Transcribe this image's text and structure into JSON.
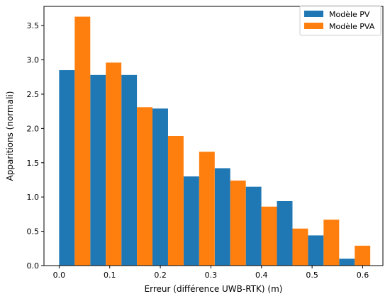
{
  "chart_data": {
    "type": "bar",
    "title": "",
    "xlabel": "Erreur (différence UWB-RTK) (m)",
    "ylabel": "Apparitions (normali)",
    "x": [
      0.0,
      0.0615,
      0.123,
      0.1845,
      0.246,
      0.3075,
      0.369,
      0.4305,
      0.492,
      0.5535
    ],
    "bin_width": 0.0615,
    "xlim": [
      -0.03,
      0.64
    ],
    "ylim": [
      0,
      3.78
    ],
    "xticks": [
      0.0,
      0.1,
      0.2,
      0.3,
      0.4,
      0.5,
      0.6
    ],
    "xtick_labels": [
      "0.0",
      "0.1",
      "0.2",
      "0.3",
      "0.4",
      "0.5",
      "0.6"
    ],
    "yticks": [
      0.0,
      0.5,
      1.0,
      1.5,
      2.0,
      2.5,
      3.0,
      3.5
    ],
    "ytick_labels": [
      "0.0",
      "0.5",
      "1.0",
      "1.5",
      "2.0",
      "2.5",
      "3.0",
      "3.5"
    ],
    "grid": false,
    "legend_position": "top-right",
    "series": [
      {
        "name": "Modèle PV",
        "color": "#1f77b4",
        "values": [
          2.85,
          2.78,
          2.78,
          2.29,
          1.3,
          1.42,
          1.15,
          0.94,
          0.44,
          0.1
        ]
      },
      {
        "name": "Modèle PVA",
        "color": "#ff7f0e",
        "values": [
          3.63,
          2.96,
          2.31,
          1.89,
          1.66,
          1.24,
          0.86,
          0.54,
          0.67,
          0.29
        ]
      }
    ]
  }
}
